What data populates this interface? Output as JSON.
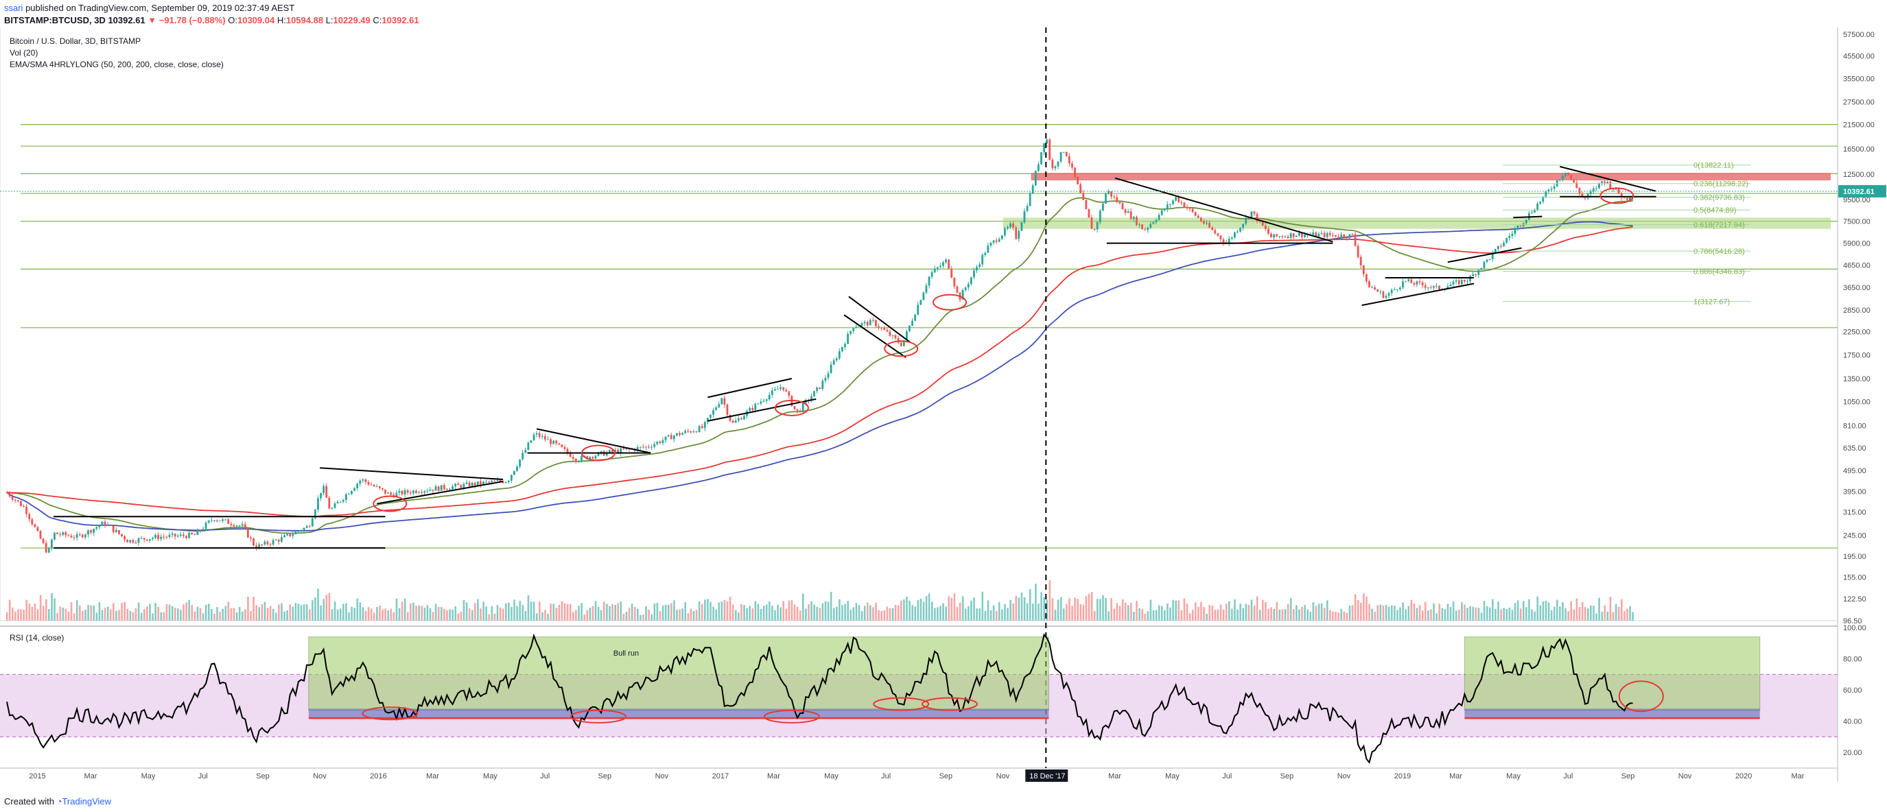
{
  "header": {
    "author": "ssari",
    "published": "published on TradingView.com, September 09, 2019 02:37:49 AEST",
    "symbol": "BITSTAMP:BTCUSD, 3D",
    "last": "10392.61",
    "change": "▼ −91.78 (−0.88%)",
    "o_label": "O:",
    "o": "10309.04",
    "h_label": "H:",
    "h": "10594.88",
    "l_label": "L:",
    "l": "10229.49",
    "c_label": "C:",
    "c": "10392.61"
  },
  "legend": {
    "title": "Bitcoin / U.S. Dollar, 3D, BITSTAMP",
    "vol": "Vol (20)",
    "ema": "EMA/SMA 4HRLYLONG (50, 200, 200, close, close, close)"
  },
  "colors": {
    "up": "#26a69a",
    "down": "#ef5350",
    "vol_up": "#80cbc4",
    "vol_down": "#f8a5a4",
    "ema50": "#6b8e3d",
    "sma200": "#3f51b5",
    "ema200": "#e53935",
    "level": "#7cb342",
    "zone_green": "#aed581",
    "zone_red": "#e57373",
    "rsi_band": "#e1bee7",
    "rsi_green": "#9ccc65",
    "annotation": "#e53935"
  },
  "chart_data": [
    {
      "type": "candlestick",
      "title": "Bitcoin / U.S. Dollar, 3D, BITSTAMP",
      "yscale": "log",
      "ylim": [
        96.5,
        57500
      ],
      "y_ticks": [
        "57500.00",
        "45500.00",
        "35500.00",
        "27500.00",
        "21500.00",
        "16500.00",
        "12500.00",
        "9500.00",
        "7500.00",
        "5900.00",
        "4650.00",
        "3650.00",
        "2850.00",
        "2250.00",
        "1750.00",
        "1350.00",
        "1050.00",
        "810.00",
        "635.00",
        "495.00",
        "395.00",
        "315.00",
        "245.00",
        "195.00",
        "155.00",
        "122.50",
        "96.50"
      ],
      "x_ticks": [
        "2015",
        "Mar",
        "May",
        "Jul",
        "Sep",
        "Nov",
        "2016",
        "Mar",
        "May",
        "Jul",
        "Sep",
        "Nov",
        "2017",
        "Mar",
        "May",
        "Jul",
        "Sep",
        "Nov",
        "Mar",
        "May",
        "Jul",
        "Sep",
        "Nov",
        "2019",
        "Mar",
        "May",
        "Jul",
        "Sep",
        "Nov",
        "2020",
        "Mar"
      ],
      "x_range": [
        "2014-12-01",
        "2020-04-10"
      ],
      "highlighted_date": "18 Dec '17",
      "last_price": "10392.61",
      "price_path": [
        [
          "2014-12-01",
          390
        ],
        [
          "2014-12-20",
          330
        ],
        [
          "2015-01-14",
          200
        ],
        [
          "2015-01-20",
          250
        ],
        [
          "2015-02-15",
          240
        ],
        [
          "2015-03-15",
          280
        ],
        [
          "2015-04-10",
          230
        ],
        [
          "2015-05-10",
          240
        ],
        [
          "2015-06-20",
          245
        ],
        [
          "2015-07-10",
          295
        ],
        [
          "2015-08-10",
          270
        ],
        [
          "2015-08-24",
          215
        ],
        [
          "2015-09-20",
          235
        ],
        [
          "2015-10-20",
          270
        ],
        [
          "2015-11-04",
          420
        ],
        [
          "2015-11-12",
          320
        ],
        [
          "2015-12-15",
          450
        ],
        [
          "2016-01-15",
          380
        ],
        [
          "2016-02-15",
          400
        ],
        [
          "2016-03-20",
          415
        ],
        [
          "2016-05-20",
          445
        ],
        [
          "2016-06-18",
          740
        ],
        [
          "2016-07-10",
          660
        ],
        [
          "2016-08-02",
          560
        ],
        [
          "2016-09-01",
          600
        ],
        [
          "2016-10-15",
          640
        ],
        [
          "2016-11-15",
          730
        ],
        [
          "2016-12-15",
          790
        ],
        [
          "2017-01-04",
          1100
        ],
        [
          "2017-01-15",
          820
        ],
        [
          "2017-02-20",
          1100
        ],
        [
          "2017-03-10",
          1250
        ],
        [
          "2017-03-25",
          930
        ],
        [
          "2017-04-20",
          1250
        ],
        [
          "2017-05-25",
          2400
        ],
        [
          "2017-06-15",
          2500
        ],
        [
          "2017-07-16",
          1950
        ],
        [
          "2017-08-15",
          4200
        ],
        [
          "2017-09-02",
          4900
        ],
        [
          "2017-09-15",
          3200
        ],
        [
          "2017-10-15",
          5600
        ],
        [
          "2017-11-10",
          7200
        ],
        [
          "2017-11-15",
          6300
        ],
        [
          "2017-11-30",
          10000
        ],
        [
          "2017-12-17",
          19500
        ],
        [
          "2017-12-23",
          13000
        ],
        [
          "2017-12-29",
          14500
        ],
        [
          "2018-01-06",
          16500
        ],
        [
          "2018-01-20",
          11000
        ],
        [
          "2018-02-06",
          6600
        ],
        [
          "2018-02-20",
          10500
        ],
        [
          "2018-04-01",
          6800
        ],
        [
          "2018-05-05",
          9700
        ],
        [
          "2018-06-28",
          5900
        ],
        [
          "2018-07-25",
          8300
        ],
        [
          "2018-08-15",
          6300
        ],
        [
          "2018-09-10",
          6500
        ],
        [
          "2018-11-10",
          6400
        ],
        [
          "2018-11-25",
          3800
        ],
        [
          "2018-12-15",
          3300
        ],
        [
          "2019-01-05",
          3900
        ],
        [
          "2019-02-10",
          3600
        ],
        [
          "2019-03-15",
          4000
        ],
        [
          "2019-04-05",
          5000
        ],
        [
          "2019-05-15",
          7800
        ],
        [
          "2019-06-26",
          13000
        ],
        [
          "2019-07-16",
          9500
        ],
        [
          "2019-08-06",
          11800
        ],
        [
          "2019-08-29",
          9500
        ],
        [
          "2019-09-08",
          10392
        ]
      ],
      "fib_levels": [
        {
          "label": "0(13822.11)",
          "price": 13822.11
        },
        {
          "label": "0.236(11298.22)",
          "price": 11298.22
        },
        {
          "label": "0.382(9736.83)",
          "price": 9736.83
        },
        {
          "label": "0.5(8474.89)",
          "price": 8474.89
        },
        {
          "label": "0.618(7217.94)",
          "price": 7217.94
        },
        {
          "label": "0.786(5416.28)",
          "price": 5416.28
        },
        {
          "label": "0.886(4346.83)",
          "price": 4346.83
        },
        {
          "label": "1(3127.67)",
          "price": 3127.67
        }
      ],
      "horizontal_levels": [
        21500,
        17000,
        12600,
        10150,
        7500,
        4450,
        2350,
        213
      ],
      "zones": [
        {
          "from": 11700,
          "to": 12700,
          "color": "red"
        },
        {
          "from": 6900,
          "to": 7800,
          "color": "green"
        }
      ]
    },
    {
      "type": "bar",
      "title": "Vol (20)",
      "series": "volume"
    },
    {
      "type": "line",
      "title": "RSI (14, close)",
      "ylim": [
        10,
        100
      ],
      "y_ticks": [
        "100.00",
        "80.00",
        "60.00",
        "40.00",
        "20.00"
      ],
      "overbought": 70,
      "oversold": 30,
      "bull_run_label": "Bull run",
      "rsi_path": [
        [
          "2014-12-01",
          48
        ],
        [
          "2015-01-14",
          25
        ],
        [
          "2015-02-15",
          45
        ],
        [
          "2015-04-10",
          40
        ],
        [
          "2015-06-15",
          50
        ],
        [
          "2015-07-10",
          74
        ],
        [
          "2015-08-24",
          30
        ],
        [
          "2015-09-25",
          48
        ],
        [
          "2015-11-04",
          90
        ],
        [
          "2015-11-14",
          55
        ],
        [
          "2015-12-15",
          76
        ],
        [
          "2016-01-15",
          42
        ],
        [
          "2016-03-01",
          52
        ],
        [
          "2016-05-20",
          65
        ],
        [
          "2016-06-18",
          93
        ],
        [
          "2016-08-02",
          40
        ],
        [
          "2016-09-15",
          55
        ],
        [
          "2016-11-01",
          72
        ],
        [
          "2016-12-20",
          88
        ],
        [
          "2017-01-12",
          45
        ],
        [
          "2017-02-25",
          85
        ],
        [
          "2017-03-25",
          44
        ],
        [
          "2017-05-25",
          90
        ],
        [
          "2017-07-16",
          48
        ],
        [
          "2017-08-20",
          84
        ],
        [
          "2017-09-15",
          47
        ],
        [
          "2017-10-20",
          80
        ],
        [
          "2017-11-15",
          55
        ],
        [
          "2017-12-17",
          93
        ],
        [
          "2018-01-06",
          62
        ],
        [
          "2018-02-06",
          28
        ],
        [
          "2018-03-05",
          48
        ],
        [
          "2018-04-01",
          34
        ],
        [
          "2018-05-05",
          62
        ],
        [
          "2018-06-28",
          33
        ],
        [
          "2018-07-25",
          60
        ],
        [
          "2018-08-15",
          38
        ],
        [
          "2018-10-01",
          48
        ],
        [
          "2018-11-10",
          40
        ],
        [
          "2018-11-25",
          15
        ],
        [
          "2018-12-20",
          38
        ],
        [
          "2019-02-10",
          40
        ],
        [
          "2019-03-15",
          55
        ],
        [
          "2019-04-05",
          80
        ],
        [
          "2019-05-01",
          72
        ],
        [
          "2019-06-26",
          90
        ],
        [
          "2019-07-16",
          52
        ],
        [
          "2019-08-06",
          66
        ],
        [
          "2019-08-29",
          44
        ],
        [
          "2019-09-08",
          53
        ]
      ]
    }
  ],
  "footer": {
    "created": "Created with",
    "brand": "TradingView"
  }
}
